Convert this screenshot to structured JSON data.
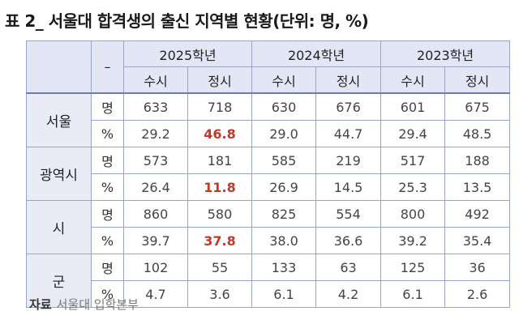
{
  "title": "표 2_ 서울대 합격생의 출신 지역별 현황(단위: 명, %)",
  "corner": "–",
  "years": [
    "2025학년",
    "2024학년",
    "2023학년"
  ],
  "sub_headers": [
    "수시",
    "정시",
    "수시",
    "정시",
    "수시",
    "정시"
  ],
  "rows": [
    {
      "region": "서울",
      "count_unit": "명",
      "count": [
        "633",
        "718",
        "630",
        "676",
        "601",
        "675"
      ],
      "pct_unit": "%",
      "pct": [
        "29.2",
        "46.8",
        "29.0",
        "44.7",
        "29.4",
        "48.5"
      ]
    },
    {
      "region": "광역시",
      "count_unit": "명",
      "count": [
        "573",
        "181",
        "585",
        "219",
        "517",
        "188"
      ],
      "pct_unit": "%",
      "pct": [
        "26.4",
        "11.8",
        "26.9",
        "14.5",
        "25.3",
        "13.5"
      ]
    },
    {
      "region": "시",
      "count_unit": "명",
      "count": [
        "860",
        "580",
        "825",
        "554",
        "800",
        "492"
      ],
      "pct_unit": "%",
      "pct": [
        "39.7",
        "37.8",
        "38.0",
        "36.6",
        "39.2",
        "35.4"
      ]
    },
    {
      "region": "군",
      "count_unit": "명",
      "count": [
        "102",
        "55",
        "133",
        "63",
        "125",
        "36"
      ],
      "pct_unit": "%",
      "pct": [
        "4.7",
        "3.6",
        "6.1",
        "4.2",
        "6.1",
        "2.6"
      ]
    }
  ],
  "source_label": "자료",
  "source_text": "서울대 입학본부",
  "colors": {
    "header_bg": "#e3e7f5",
    "border": "#9aa4c7",
    "highlight": "#c0392b"
  }
}
